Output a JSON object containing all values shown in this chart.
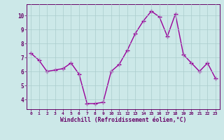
{
  "x": [
    0,
    1,
    2,
    3,
    4,
    5,
    6,
    7,
    8,
    9,
    10,
    11,
    12,
    13,
    14,
    15,
    16,
    17,
    18,
    19,
    20,
    21,
    22,
    23
  ],
  "y": [
    7.3,
    6.8,
    6.0,
    6.1,
    6.2,
    6.6,
    5.8,
    3.7,
    3.7,
    3.8,
    6.0,
    6.5,
    7.5,
    8.7,
    9.6,
    10.3,
    9.9,
    8.5,
    10.1,
    7.2,
    6.6,
    6.0,
    6.6,
    5.5
  ],
  "line_color": "#990099",
  "marker": "+",
  "marker_size": 4,
  "linewidth": 1.0,
  "bg_color": "#cce8e8",
  "grid_color": "#aacccc",
  "xlabel": "Windchill (Refroidissement éolien,°C)",
  "xlabel_color": "#660066",
  "tick_color": "#660066",
  "ylim": [
    3.3,
    10.8
  ],
  "yticks": [
    4,
    5,
    6,
    7,
    8,
    9,
    10
  ],
  "xticks": [
    0,
    1,
    2,
    3,
    4,
    5,
    6,
    7,
    8,
    9,
    10,
    11,
    12,
    13,
    14,
    15,
    16,
    17,
    18,
    19,
    20,
    21,
    22,
    23
  ],
  "figsize": [
    3.2,
    2.0
  ],
  "dpi": 100
}
